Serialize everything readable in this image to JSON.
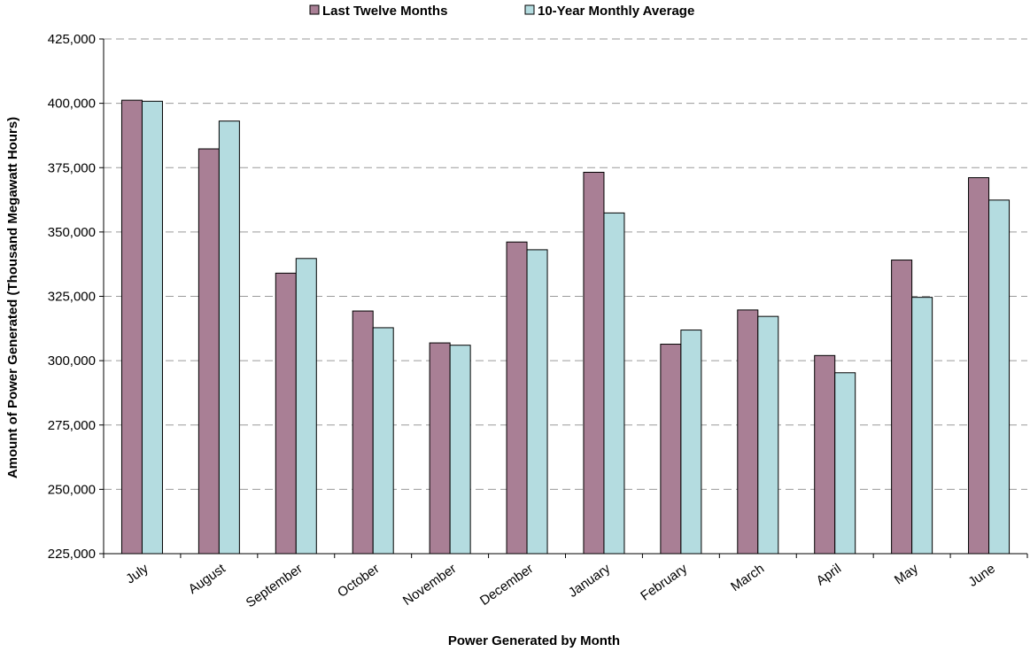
{
  "chart_data": {
    "type": "bar",
    "categories": [
      "July",
      "August",
      "September",
      "October",
      "November",
      "December",
      "January",
      "February",
      "March",
      "April",
      "May",
      "June"
    ],
    "series": [
      {
        "name": "Last Twelve Months",
        "color": "#A97F95",
        "values": [
          401200,
          382300,
          334000,
          319300,
          306900,
          346100,
          373200,
          306400,
          319700,
          302000,
          339100,
          371100
        ]
      },
      {
        "name": "10-Year Monthly Average",
        "color": "#B4DCE0",
        "values": [
          400800,
          393100,
          339700,
          312800,
          306000,
          343100,
          357400,
          311900,
          317200,
          295300,
          324600,
          362400
        ]
      }
    ],
    "xlabel": "Power Generated by Month",
    "ylabel": "Amount of Power Generated (Thousand Megawatt Hours)",
    "ylim": [
      225000,
      425000
    ],
    "yticks": [
      225000,
      250000,
      275000,
      300000,
      325000,
      350000,
      375000,
      400000,
      425000
    ],
    "ytick_labels": [
      "225,000",
      "250,000",
      "275,000",
      "300,000",
      "325,000",
      "350,000",
      "375,000",
      "400,000",
      "425,000"
    ],
    "grid": true,
    "legend_position": "top"
  }
}
